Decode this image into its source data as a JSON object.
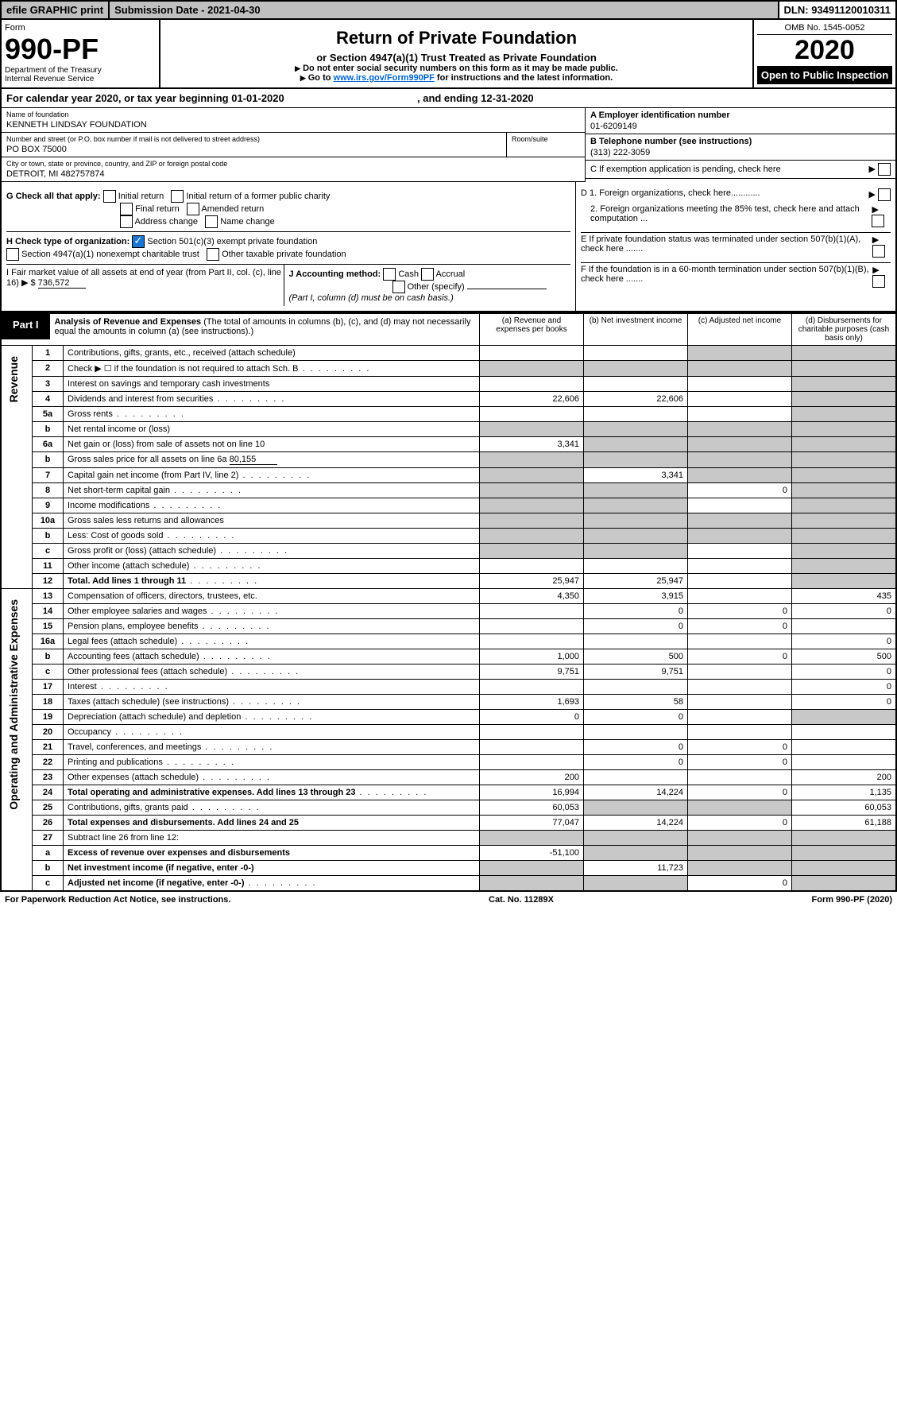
{
  "top": {
    "efile": "efile GRAPHIC print",
    "sub": "Submission Date - 2021-04-30",
    "dln": "DLN: 93491120010311"
  },
  "header": {
    "form_word": "Form",
    "form_no": "990-PF",
    "dept": "Department of the Treasury",
    "irs": "Internal Revenue Service",
    "title": "Return of Private Foundation",
    "subtitle": "or Section 4947(a)(1) Trust Treated as Private Foundation",
    "note1": "Do not enter social security numbers on this form as it may be made public.",
    "note2_pre": "Go to ",
    "note2_link": "www.irs.gov/Form990PF",
    "note2_post": " for instructions and the latest information.",
    "omb": "OMB No. 1545-0052",
    "year": "2020",
    "open": "Open to Public Inspection"
  },
  "cal": {
    "pre": "For calendar year 2020, or tax year beginning ",
    "begin": "01-01-2020",
    "mid": ", and ending ",
    "end": "12-31-2020"
  },
  "entity": {
    "name_lbl": "Name of foundation",
    "name": "KENNETH LINDSAY FOUNDATION",
    "addr_lbl": "Number and street (or P.O. box number if mail is not delivered to street address)",
    "room_lbl": "Room/suite",
    "addr": "PO BOX 75000",
    "city_lbl": "City or town, state or province, country, and ZIP or foreign postal code",
    "city": "DETROIT, MI  482757874",
    "ein_lbl": "A Employer identification number",
    "ein": "01-6209149",
    "tel_lbl": "B Telephone number (see instructions)",
    "tel": "(313) 222-3059",
    "c_lbl": "C If exemption application is pending, check here",
    "d1": "D 1. Foreign organizations, check here............",
    "d2": "2. Foreign organizations meeting the 85% test, check here and attach computation ...",
    "e": "E  If private foundation status was terminated under section 507(b)(1)(A), check here .......",
    "f": "F  If the foundation is in a 60-month termination under section 507(b)(1)(B), check here ......."
  },
  "g": {
    "lbl": "G Check all that apply:",
    "opts": [
      "Initial return",
      "Initial return of a former public charity",
      "Final return",
      "Amended return",
      "Address change",
      "Name change"
    ]
  },
  "h": {
    "lbl": "H Check type of organization:",
    "o1": "Section 501(c)(3) exempt private foundation",
    "o2": "Section 4947(a)(1) nonexempt charitable trust",
    "o3": "Other taxable private foundation"
  },
  "i": {
    "lbl": "I Fair market value of all assets at end of year (from Part II, col. (c), line 16) ",
    "amt": "736,572"
  },
  "j": {
    "lbl": "J Accounting method:",
    "o1": "Cash",
    "o2": "Accrual",
    "o3": "Other (specify)",
    "n": "(Part I, column (d) must be on cash basis.)"
  },
  "part1": {
    "tag": "Part I",
    "title": "Analysis of Revenue and Expenses ",
    "note": "(The total of amounts in columns (b), (c), and (d) may not necessarily equal the amounts in column (a) (see instructions).)",
    "cols": {
      "a": "(a) Revenue and expenses per books",
      "b": "(b) Net investment income",
      "c": "(c) Adjusted net income",
      "d": "(d) Disbursements for charitable purposes (cash basis only)"
    }
  },
  "side": {
    "rev": "Revenue",
    "exp": "Operating and Administrative Expenses"
  },
  "rows": [
    {
      "n": "1",
      "d": "Contributions, gifts, grants, etc., received (attach schedule)",
      "a": "",
      "b": "",
      "c": "g",
      "dd": "g"
    },
    {
      "n": "2",
      "d": "Check ▶ ☐ if the foundation is not required to attach Sch. B",
      "a": "g",
      "b": "g",
      "c": "g",
      "dd": "g",
      "dots": 1
    },
    {
      "n": "3",
      "d": "Interest on savings and temporary cash investments",
      "a": "",
      "b": "",
      "c": "",
      "dd": "g"
    },
    {
      "n": "4",
      "d": "Dividends and interest from securities",
      "a": "22,606",
      "b": "22,606",
      "c": "",
      "dd": "g",
      "dots": 1
    },
    {
      "n": "5a",
      "d": "Gross rents",
      "a": "",
      "b": "",
      "c": "",
      "dd": "g",
      "dots": 1
    },
    {
      "n": "b",
      "d": "Net rental income or (loss)",
      "a": "g",
      "b": "g",
      "c": "g",
      "dd": "g"
    },
    {
      "n": "6a",
      "d": "Net gain or (loss) from sale of assets not on line 10",
      "a": "3,341",
      "b": "g",
      "c": "g",
      "dd": "g"
    },
    {
      "n": "b",
      "d": "Gross sales price for all assets on line 6a",
      "inline": "80,155",
      "a": "g",
      "b": "g",
      "c": "g",
      "dd": "g"
    },
    {
      "n": "7",
      "d": "Capital gain net income (from Part IV, line 2)",
      "a": "g",
      "b": "3,341",
      "c": "g",
      "dd": "g",
      "dots": 1
    },
    {
      "n": "8",
      "d": "Net short-term capital gain",
      "a": "g",
      "b": "g",
      "c": "0",
      "dd": "g",
      "dots": 1
    },
    {
      "n": "9",
      "d": "Income modifications",
      "a": "g",
      "b": "g",
      "c": "",
      "dd": "g",
      "dots": 1
    },
    {
      "n": "10a",
      "d": "Gross sales less returns and allowances",
      "a": "g",
      "b": "g",
      "c": "g",
      "dd": "g"
    },
    {
      "n": "b",
      "d": "Less: Cost of goods sold",
      "a": "g",
      "b": "g",
      "c": "g",
      "dd": "g",
      "dots": 1
    },
    {
      "n": "c",
      "d": "Gross profit or (loss) (attach schedule)",
      "a": "g",
      "b": "g",
      "c": "",
      "dd": "g",
      "dots": 1
    },
    {
      "n": "11",
      "d": "Other income (attach schedule)",
      "a": "",
      "b": "",
      "c": "",
      "dd": "g",
      "dots": 1
    },
    {
      "n": "12",
      "d": "Total. Add lines 1 through 11",
      "a": "25,947",
      "b": "25,947",
      "c": "",
      "dd": "g",
      "b1": 1,
      "dots": 1
    },
    {
      "n": "13",
      "d": "Compensation of officers, directors, trustees, etc.",
      "a": "4,350",
      "b": "3,915",
      "c": "",
      "dd": "435"
    },
    {
      "n": "14",
      "d": "Other employee salaries and wages",
      "a": "",
      "b": "0",
      "c": "0",
      "dd": "0",
      "dots": 1
    },
    {
      "n": "15",
      "d": "Pension plans, employee benefits",
      "a": "",
      "b": "0",
      "c": "0",
      "dd": "",
      "dots": 1
    },
    {
      "n": "16a",
      "d": "Legal fees (attach schedule)",
      "a": "",
      "b": "",
      "c": "",
      "dd": "0",
      "dots": 1
    },
    {
      "n": "b",
      "d": "Accounting fees (attach schedule)",
      "a": "1,000",
      "b": "500",
      "c": "0",
      "dd": "500",
      "dots": 1
    },
    {
      "n": "c",
      "d": "Other professional fees (attach schedule)",
      "a": "9,751",
      "b": "9,751",
      "c": "",
      "dd": "0",
      "dots": 1
    },
    {
      "n": "17",
      "d": "Interest",
      "a": "",
      "b": "",
      "c": "",
      "dd": "0",
      "dots": 1
    },
    {
      "n": "18",
      "d": "Taxes (attach schedule) (see instructions)",
      "a": "1,693",
      "b": "58",
      "c": "",
      "dd": "0",
      "dots": 1
    },
    {
      "n": "19",
      "d": "Depreciation (attach schedule) and depletion",
      "a": "0",
      "b": "0",
      "c": "",
      "dd": "g",
      "dots": 1
    },
    {
      "n": "20",
      "d": "Occupancy",
      "a": "",
      "b": "",
      "c": "",
      "dd": "",
      "dots": 1
    },
    {
      "n": "21",
      "d": "Travel, conferences, and meetings",
      "a": "",
      "b": "0",
      "c": "0",
      "dd": "",
      "dots": 1
    },
    {
      "n": "22",
      "d": "Printing and publications",
      "a": "",
      "b": "0",
      "c": "0",
      "dd": "",
      "dots": 1
    },
    {
      "n": "23",
      "d": "Other expenses (attach schedule)",
      "a": "200",
      "b": "",
      "c": "",
      "dd": "200",
      "dots": 1
    },
    {
      "n": "24",
      "d": "Total operating and administrative expenses. Add lines 13 through 23",
      "a": "16,994",
      "b": "14,224",
      "c": "0",
      "dd": "1,135",
      "b1": 1,
      "dots": 1
    },
    {
      "n": "25",
      "d": "Contributions, gifts, grants paid",
      "a": "60,053",
      "b": "g",
      "c": "g",
      "dd": "60,053",
      "dots": 1
    },
    {
      "n": "26",
      "d": "Total expenses and disbursements. Add lines 24 and 25",
      "a": "77,047",
      "b": "14,224",
      "c": "0",
      "dd": "61,188",
      "b1": 1
    },
    {
      "n": "27",
      "d": "Subtract line 26 from line 12:",
      "a": "g",
      "b": "g",
      "c": "g",
      "dd": "g"
    },
    {
      "n": "a",
      "d": "Excess of revenue over expenses and disbursements",
      "a": "-51,100",
      "b": "g",
      "c": "g",
      "dd": "g",
      "b1": 1
    },
    {
      "n": "b",
      "d": "Net investment income (if negative, enter -0-)",
      "a": "g",
      "b": "11,723",
      "c": "g",
      "dd": "g",
      "b1": 1
    },
    {
      "n": "c",
      "d": "Adjusted net income (if negative, enter -0-)",
      "a": "g",
      "b": "g",
      "c": "0",
      "dd": "g",
      "b1": 1,
      "dots": 1
    }
  ],
  "footer": {
    "l": "For Paperwork Reduction Act Notice, see instructions.",
    "m": "Cat. No. 11289X",
    "r": "Form 990-PF (2020)"
  }
}
